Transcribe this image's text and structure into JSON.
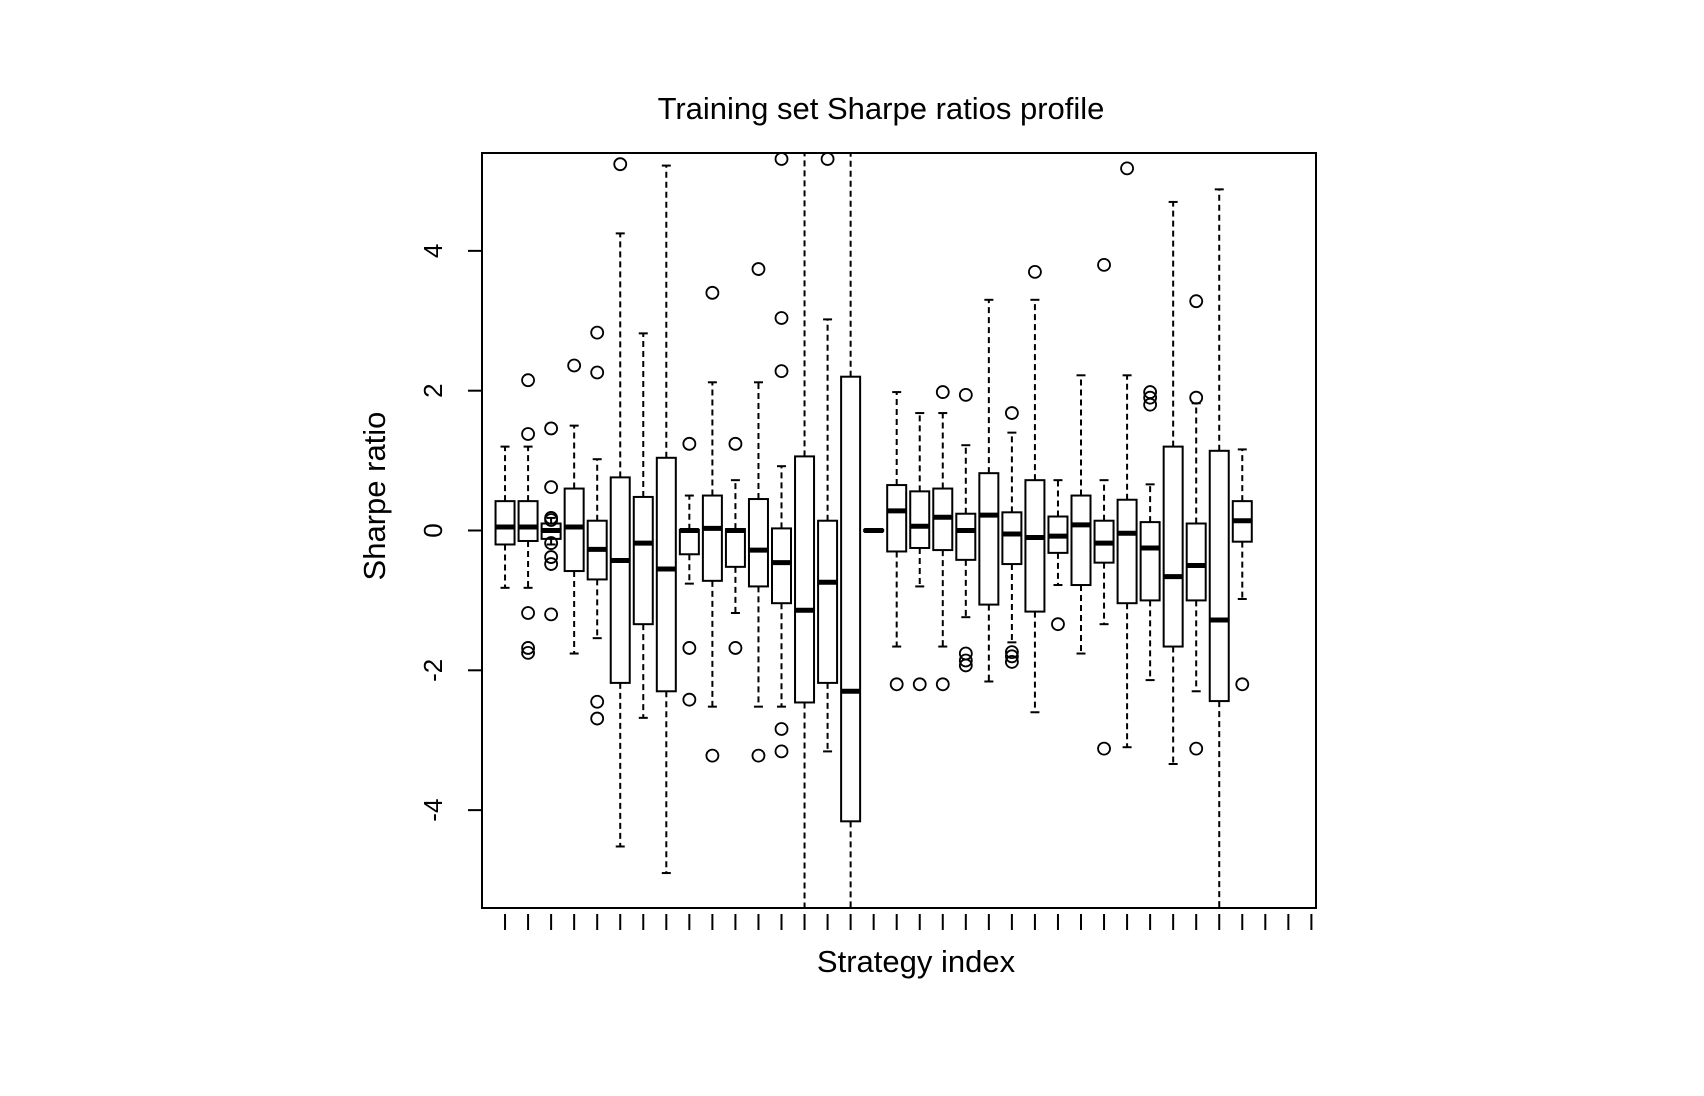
{
  "chart_data": {
    "type": "boxplot",
    "title": "Training set Sharpe ratios profile",
    "xlabel": "Strategy index",
    "ylabel": "Sharpe ratio",
    "ylim": [
      -5.4,
      5.4
    ],
    "xlim": [
      0.0,
      36.2
    ],
    "yticks": [
      -4,
      -2,
      0,
      2,
      4
    ],
    "y_tick_labels": [
      "-4",
      "-2",
      "0",
      "2",
      "4"
    ],
    "x_tick_labels": [],
    "grid": false,
    "legend": "none",
    "boxes": [
      {
        "index": 1,
        "q1": -0.2,
        "median": 0.05,
        "q3": 0.42,
        "whisker_low": -0.82,
        "whisker_high": 1.2,
        "outliers": []
      },
      {
        "index": 2,
        "q1": -0.15,
        "median": 0.05,
        "q3": 0.42,
        "whisker_low": -0.82,
        "whisker_high": 1.2,
        "outliers": [
          2.15,
          1.38,
          -1.18,
          -1.68,
          -1.75
        ]
      },
      {
        "index": 3,
        "q1": -0.12,
        "median": 0.0,
        "q3": 0.1,
        "whisker_low": -0.2,
        "whisker_high": 0.18,
        "outliers": [
          1.46,
          0.62,
          0.18,
          0.15,
          -0.18,
          -0.38,
          -0.48,
          -1.2
        ]
      },
      {
        "index": 4,
        "q1": -0.58,
        "median": 0.05,
        "q3": 0.6,
        "whisker_low": -1.76,
        "whisker_high": 1.5,
        "outliers": [
          2.36
        ]
      },
      {
        "index": 5,
        "q1": -0.7,
        "median": -0.27,
        "q3": 0.14,
        "whisker_low": -1.54,
        "whisker_high": 1.02,
        "outliers": [
          2.83,
          2.26,
          -2.45,
          -2.69
        ]
      },
      {
        "index": 6,
        "q1": -2.18,
        "median": -0.43,
        "q3": 0.76,
        "whisker_low": -4.52,
        "whisker_high": 4.25,
        "outliers": [
          5.24
        ]
      },
      {
        "index": 7,
        "q1": -1.34,
        "median": -0.18,
        "q3": 0.48,
        "whisker_low": -2.68,
        "whisker_high": 2.82,
        "outliers": []
      },
      {
        "index": 8,
        "q1": -2.3,
        "median": -0.55,
        "q3": 1.04,
        "whisker_low": -4.9,
        "whisker_high": 5.22,
        "outliers": []
      },
      {
        "index": 9,
        "q1": -0.34,
        "median": 0.0,
        "q3": 0.01,
        "whisker_low": -0.76,
        "whisker_high": 0.5,
        "outliers": [
          1.24,
          -1.68,
          -2.42
        ]
      },
      {
        "index": 10,
        "q1": -0.72,
        "median": 0.03,
        "q3": 0.5,
        "whisker_low": -2.52,
        "whisker_high": 2.12,
        "outliers": [
          3.4,
          -3.22
        ]
      },
      {
        "index": 11,
        "q1": -0.52,
        "median": 0.0,
        "q3": 0.02,
        "whisker_low": -1.18,
        "whisker_high": 0.72,
        "outliers": [
          1.24,
          -1.68
        ]
      },
      {
        "index": 12,
        "q1": -0.8,
        "median": -0.28,
        "q3": 0.45,
        "whisker_low": -2.52,
        "whisker_high": 2.12,
        "outliers": [
          3.74,
          -3.22
        ]
      },
      {
        "index": 13,
        "q1": -1.04,
        "median": -0.46,
        "q3": 0.03,
        "whisker_low": -2.52,
        "whisker_high": 0.92,
        "outliers": [
          5.34,
          3.04,
          2.28,
          -2.84,
          -3.16
        ]
      },
      {
        "index": 14,
        "q1": -2.46,
        "median": -1.14,
        "q3": 1.06,
        "whisker_low": -5.4,
        "whisker_high": 5.4,
        "outliers": []
      },
      {
        "index": 15,
        "q1": -2.18,
        "median": -0.74,
        "q3": 0.14,
        "whisker_low": -3.16,
        "whisker_high": 3.02,
        "outliers": [
          5.34
        ]
      },
      {
        "index": 16,
        "q1": -4.16,
        "median": -2.3,
        "q3": 2.2,
        "whisker_low": -5.4,
        "whisker_high": 5.4,
        "outliers": []
      },
      {
        "index": 17,
        "q1": -0.01,
        "median": 0.0,
        "q3": 0.01,
        "whisker_low": -0.01,
        "whisker_high": 0.01,
        "outliers": []
      },
      {
        "index": 18,
        "q1": -0.3,
        "median": 0.28,
        "q3": 0.65,
        "whisker_low": -1.66,
        "whisker_high": 1.98,
        "outliers": [
          -2.2
        ]
      },
      {
        "index": 19,
        "q1": -0.25,
        "median": 0.06,
        "q3": 0.56,
        "whisker_low": -0.8,
        "whisker_high": 1.68,
        "outliers": [
          -2.2
        ]
      },
      {
        "index": 20,
        "q1": -0.28,
        "median": 0.19,
        "q3": 0.6,
        "whisker_low": -1.66,
        "whisker_high": 1.68,
        "outliers": [
          1.98,
          -2.2
        ]
      },
      {
        "index": 21,
        "q1": -0.42,
        "median": 0.0,
        "q3": 0.24,
        "whisker_low": -1.24,
        "whisker_high": 1.22,
        "outliers": [
          1.94,
          -1.76,
          -1.86,
          -1.93
        ]
      },
      {
        "index": 22,
        "q1": -1.06,
        "median": 0.22,
        "q3": 0.82,
        "whisker_low": -2.16,
        "whisker_high": 3.3,
        "outliers": []
      },
      {
        "index": 23,
        "q1": -0.48,
        "median": -0.05,
        "q3": 0.26,
        "whisker_low": -1.6,
        "whisker_high": 1.4,
        "outliers": [
          1.68,
          -1.74,
          -1.8,
          -1.88
        ]
      },
      {
        "index": 24,
        "q1": -1.16,
        "median": -0.1,
        "q3": 0.72,
        "whisker_low": -2.6,
        "whisker_high": 3.3,
        "outliers": [
          3.7
        ]
      },
      {
        "index": 25,
        "q1": -0.32,
        "median": -0.08,
        "q3": 0.2,
        "whisker_low": -0.78,
        "whisker_high": 0.72,
        "outliers": [
          -1.34
        ]
      },
      {
        "index": 26,
        "q1": -0.78,
        "median": 0.08,
        "q3": 0.5,
        "whisker_low": -1.76,
        "whisker_high": 2.22,
        "outliers": []
      },
      {
        "index": 27,
        "q1": -0.46,
        "median": -0.18,
        "q3": 0.14,
        "whisker_low": -1.34,
        "whisker_high": 0.72,
        "outliers": [
          3.8,
          -3.12
        ]
      },
      {
        "index": 28,
        "q1": -1.04,
        "median": -0.04,
        "q3": 0.44,
        "whisker_low": -3.1,
        "whisker_high": 2.22,
        "outliers": [
          5.18
        ]
      },
      {
        "index": 29,
        "q1": -1.0,
        "median": -0.25,
        "q3": 0.12,
        "whisker_low": -2.14,
        "whisker_high": 0.66,
        "outliers": [
          1.98,
          1.9,
          1.8
        ]
      },
      {
        "index": 30,
        "q1": -1.66,
        "median": -0.66,
        "q3": 1.2,
        "whisker_low": -3.34,
        "whisker_high": 4.7,
        "outliers": []
      },
      {
        "index": 31,
        "q1": -1.0,
        "median": -0.5,
        "q3": 0.1,
        "whisker_low": -2.3,
        "whisker_high": 1.82,
        "outliers": [
          3.28,
          1.9,
          -3.12
        ]
      },
      {
        "index": 32,
        "q1": -2.44,
        "median": -1.28,
        "q3": 1.14,
        "whisker_low": -5.4,
        "whisker_high": 4.88,
        "outliers": []
      },
      {
        "index": 33,
        "q1": -0.16,
        "median": 0.14,
        "q3": 0.42,
        "whisker_low": -0.98,
        "whisker_high": 1.16,
        "outliers": [
          -2.2
        ]
      }
    ]
  }
}
